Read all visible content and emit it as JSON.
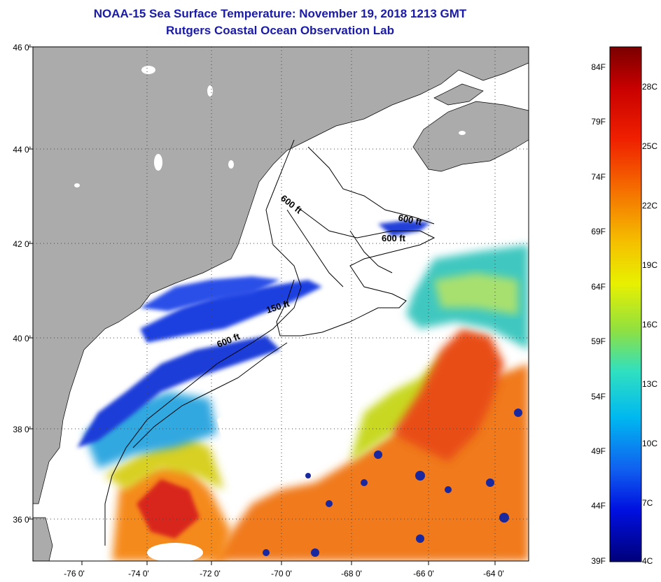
{
  "title": {
    "line1": "NOAA-15 Sea Surface Temperature:  November 19, 2018 1213 GMT",
    "line2": "Rutgers Coastal Ocean Observation Lab"
  },
  "map": {
    "lat_labels": [
      "46 0'",
      "44 0'",
      "42 0'",
      "40 0'",
      "38 0'",
      "36 0'"
    ],
    "lon_labels": [
      "-76 0'",
      "-74 0'",
      "-72 0'",
      "-70 0'",
      "-68 0'",
      "-66 0'",
      "-64 0'"
    ],
    "contour_labels": [
      "600 ft",
      "600 ft",
      "600 ft",
      "150 ft",
      "600 ft"
    ],
    "land_color": "#ababab",
    "cloud_color": "#ffffff"
  },
  "colorbar": {
    "fahrenheit": [
      "84F",
      "79F",
      "74F",
      "69F",
      "64F",
      "59F",
      "54F",
      "49F",
      "44F",
      "39F"
    ],
    "celsius": [
      "28C",
      "25C",
      "22C",
      "19C",
      "16C",
      "13C",
      "10C",
      "7C",
      "4C"
    ]
  }
}
